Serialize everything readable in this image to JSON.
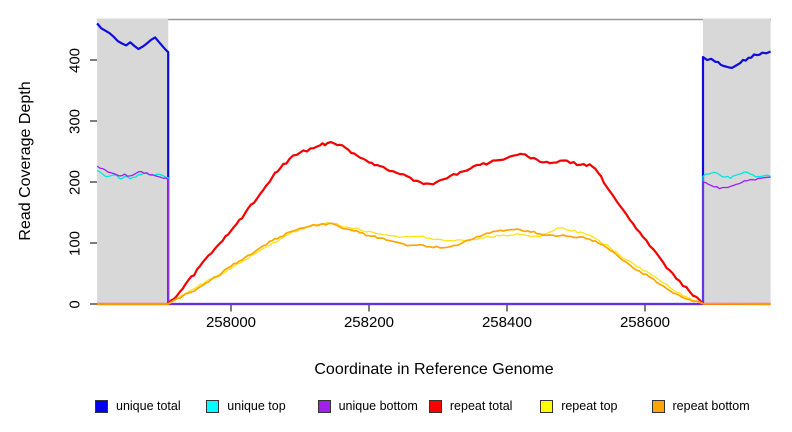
{
  "figure": {
    "background": "#ffffff",
    "masked_region_color": "#d8d8d8",
    "top_border_color": "#999999",
    "tick_color": "#444444",
    "text_color": "#000000"
  },
  "chart_data": {
    "type": "line",
    "title": "",
    "xlabel": "Coordinate in Reference Genome",
    "ylabel": "Read Coverage Depth",
    "xlim": [
      257806,
      258782
    ],
    "ylim": [
      0,
      467
    ],
    "x_ticks": [
      258000,
      258200,
      258400,
      258600
    ],
    "y_ticks": [
      0,
      100,
      200,
      300,
      400
    ],
    "grid": false,
    "legend_position": "bottom",
    "masked_regions": [
      [
        257806,
        257909
      ],
      [
        258684,
        258782
      ]
    ],
    "series": [
      {
        "name": "unique total",
        "color": "#0d0ddb",
        "width": 2.2,
        "jitter": 2.0,
        "points": [
          [
            257806,
            460
          ],
          [
            257812,
            452
          ],
          [
            257818,
            448
          ],
          [
            257824,
            444
          ],
          [
            257830,
            438
          ],
          [
            257836,
            431
          ],
          [
            257842,
            427
          ],
          [
            257848,
            424
          ],
          [
            257854,
            429
          ],
          [
            257860,
            423
          ],
          [
            257866,
            418
          ],
          [
            257872,
            422
          ],
          [
            257878,
            427
          ],
          [
            257884,
            433
          ],
          [
            257890,
            437
          ],
          [
            257896,
            429
          ],
          [
            257902,
            421
          ],
          [
            257906,
            416
          ],
          [
            257909,
            413
          ],
          [
            257909,
            0
          ],
          [
            258684,
            0
          ],
          [
            258684,
            405
          ],
          [
            258690,
            400
          ],
          [
            258696,
            402
          ],
          [
            258702,
            397
          ],
          [
            258710,
            392
          ],
          [
            258718,
            389
          ],
          [
            258726,
            387
          ],
          [
            258732,
            391
          ],
          [
            258738,
            395
          ],
          [
            258746,
            399
          ],
          [
            258754,
            404
          ],
          [
            258762,
            408
          ],
          [
            258770,
            412
          ],
          [
            258776,
            411
          ],
          [
            258782,
            414
          ]
        ]
      },
      {
        "name": "unique top",
        "color": "#00e6e6",
        "width": 1.3,
        "jitter": 1.4,
        "points": [
          [
            257806,
            219
          ],
          [
            257814,
            213
          ],
          [
            257822,
            209
          ],
          [
            257830,
            212
          ],
          [
            257838,
            206
          ],
          [
            257846,
            209
          ],
          [
            257854,
            205
          ],
          [
            257862,
            208
          ],
          [
            257870,
            212
          ],
          [
            257878,
            214
          ],
          [
            257886,
            211
          ],
          [
            257894,
            213
          ],
          [
            257902,
            210
          ],
          [
            257909,
            207
          ],
          [
            257909,
            0
          ],
          [
            258684,
            0
          ],
          [
            258684,
            209
          ],
          [
            258692,
            213
          ],
          [
            258700,
            216
          ],
          [
            258708,
            212
          ],
          [
            258716,
            208
          ],
          [
            258724,
            206
          ],
          [
            258732,
            211
          ],
          [
            258740,
            214
          ],
          [
            258748,
            216
          ],
          [
            258756,
            212
          ],
          [
            258764,
            209
          ],
          [
            258772,
            210
          ],
          [
            258782,
            209
          ]
        ]
      },
      {
        "name": "unique bottom",
        "color": "#a020f0",
        "width": 1.3,
        "jitter": 1.4,
        "points": [
          [
            257806,
            226
          ],
          [
            257814,
            222
          ],
          [
            257822,
            216
          ],
          [
            257830,
            214
          ],
          [
            257838,
            210
          ],
          [
            257846,
            213
          ],
          [
            257854,
            210
          ],
          [
            257862,
            214
          ],
          [
            257870,
            217
          ],
          [
            257878,
            215
          ],
          [
            257886,
            212
          ],
          [
            257894,
            209
          ],
          [
            257902,
            206
          ],
          [
            257909,
            204
          ],
          [
            257909,
            0
          ],
          [
            258684,
            0
          ],
          [
            258684,
            200
          ],
          [
            258692,
            196
          ],
          [
            258700,
            192
          ],
          [
            258708,
            189
          ],
          [
            258716,
            191
          ],
          [
            258724,
            193
          ],
          [
            258732,
            196
          ],
          [
            258740,
            199
          ],
          [
            258748,
            202
          ],
          [
            258756,
            204
          ],
          [
            258764,
            206
          ],
          [
            258772,
            207
          ],
          [
            258782,
            208
          ]
        ]
      },
      {
        "name": "repeat total",
        "color": "#f50000",
        "width": 2.2,
        "jitter": 1.7,
        "points": [
          [
            257806,
            0
          ],
          [
            257909,
            0
          ],
          [
            257930,
            25
          ],
          [
            257955,
            62
          ],
          [
            257980,
            95
          ],
          [
            258000,
            120
          ],
          [
            258020,
            148
          ],
          [
            258042,
            180
          ],
          [
            258060,
            208
          ],
          [
            258071,
            222
          ],
          [
            258085,
            238
          ],
          [
            258100,
            248
          ],
          [
            258115,
            255
          ],
          [
            258129,
            260
          ],
          [
            258140,
            264
          ],
          [
            258150,
            263
          ],
          [
            258158,
            261
          ],
          [
            258170,
            253
          ],
          [
            258187,
            240
          ],
          [
            258200,
            232
          ],
          [
            258216,
            226
          ],
          [
            258230,
            218
          ],
          [
            258245,
            213
          ],
          [
            258260,
            207
          ],
          [
            258274,
            200
          ],
          [
            258288,
            197
          ],
          [
            258303,
            203
          ],
          [
            258318,
            210
          ],
          [
            258332,
            216
          ],
          [
            258347,
            222
          ],
          [
            258361,
            228
          ],
          [
            258375,
            232
          ],
          [
            258390,
            236
          ],
          [
            258405,
            242
          ],
          [
            258419,
            246
          ],
          [
            258430,
            242
          ],
          [
            258448,
            233
          ],
          [
            258462,
            231
          ],
          [
            258477,
            235
          ],
          [
            258492,
            231
          ],
          [
            258506,
            228
          ],
          [
            258520,
            229
          ],
          [
            258532,
            215
          ],
          [
            258549,
            185
          ],
          [
            258563,
            162
          ],
          [
            258578,
            138
          ],
          [
            258592,
            118
          ],
          [
            258607,
            95
          ],
          [
            258622,
            75
          ],
          [
            258636,
            55
          ],
          [
            258650,
            38
          ],
          [
            258665,
            20
          ],
          [
            258684,
            0
          ],
          [
            258782,
            0
          ]
        ]
      },
      {
        "name": "repeat top",
        "color": "#ffe416",
        "width": 1.3,
        "jitter": 1.1,
        "points": [
          [
            257806,
            0
          ],
          [
            257909,
            0
          ],
          [
            257930,
            15
          ],
          [
            257955,
            32
          ],
          [
            257980,
            46
          ],
          [
            258000,
            58
          ],
          [
            258020,
            72
          ],
          [
            258042,
            88
          ],
          [
            258060,
            100
          ],
          [
            258071,
            106
          ],
          [
            258085,
            115
          ],
          [
            258100,
            122
          ],
          [
            258115,
            127
          ],
          [
            258129,
            131
          ],
          [
            258140,
            134
          ],
          [
            258150,
            132
          ],
          [
            258158,
            128
          ],
          [
            258172,
            125
          ],
          [
            258187,
            122
          ],
          [
            258200,
            119
          ],
          [
            258216,
            115
          ],
          [
            258230,
            112
          ],
          [
            258245,
            109
          ],
          [
            258260,
            110
          ],
          [
            258274,
            111
          ],
          [
            258288,
            108
          ],
          [
            258303,
            106
          ],
          [
            258318,
            104
          ],
          [
            258332,
            105
          ],
          [
            258347,
            106
          ],
          [
            258361,
            108
          ],
          [
            258375,
            110
          ],
          [
            258390,
            112
          ],
          [
            258405,
            113
          ],
          [
            258419,
            114
          ],
          [
            258430,
            112
          ],
          [
            258448,
            110
          ],
          [
            258462,
            118
          ],
          [
            258477,
            125
          ],
          [
            258490,
            121
          ],
          [
            258506,
            118
          ],
          [
            258520,
            113
          ],
          [
            258532,
            105
          ],
          [
            258549,
            93
          ],
          [
            258563,
            80
          ],
          [
            258578,
            70
          ],
          [
            258592,
            60
          ],
          [
            258607,
            50
          ],
          [
            258622,
            38
          ],
          [
            258636,
            27
          ],
          [
            258650,
            18
          ],
          [
            258665,
            9
          ],
          [
            258684,
            0
          ],
          [
            258782,
            0
          ]
        ]
      },
      {
        "name": "repeat bottom",
        "color": "#ffa500",
        "width": 1.7,
        "jitter": 1.1,
        "points": [
          [
            257806,
            0
          ],
          [
            257909,
            0
          ],
          [
            257930,
            13
          ],
          [
            257955,
            28
          ],
          [
            257980,
            45
          ],
          [
            258000,
            62
          ],
          [
            258020,
            76
          ],
          [
            258042,
            92
          ],
          [
            258060,
            104
          ],
          [
            258071,
            110
          ],
          [
            258085,
            118
          ],
          [
            258100,
            124
          ],
          [
            258115,
            128
          ],
          [
            258129,
            130
          ],
          [
            258142,
            132
          ],
          [
            258158,
            126
          ],
          [
            258172,
            122
          ],
          [
            258187,
            117
          ],
          [
            258200,
            112
          ],
          [
            258216,
            108
          ],
          [
            258230,
            104
          ],
          [
            258245,
            100
          ],
          [
            258260,
            96
          ],
          [
            258274,
            97
          ],
          [
            258288,
            94
          ],
          [
            258303,
            92
          ],
          [
            258318,
            94
          ],
          [
            258332,
            98
          ],
          [
            258347,
            105
          ],
          [
            258361,
            111
          ],
          [
            258375,
            116
          ],
          [
            258390,
            121
          ],
          [
            258405,
            122
          ],
          [
            258419,
            122
          ],
          [
            258430,
            120
          ],
          [
            258448,
            115
          ],
          [
            258462,
            113
          ],
          [
            258477,
            112
          ],
          [
            258492,
            111
          ],
          [
            258506,
            110
          ],
          [
            258520,
            106
          ],
          [
            258532,
            100
          ],
          [
            258549,
            88
          ],
          [
            258563,
            76
          ],
          [
            258578,
            64
          ],
          [
            258592,
            54
          ],
          [
            258607,
            44
          ],
          [
            258622,
            32
          ],
          [
            258636,
            22
          ],
          [
            258650,
            14
          ],
          [
            258665,
            7
          ],
          [
            258684,
            0
          ],
          [
            258782,
            0
          ]
        ]
      }
    ]
  },
  "legend": {
    "items": [
      {
        "label": "unique total",
        "color": "#0000f0"
      },
      {
        "label": "unique top",
        "color": "#00ffff"
      },
      {
        "label": "unique bottom",
        "color": "#a020f0"
      },
      {
        "label": "repeat total",
        "color": "#ff0000"
      },
      {
        "label": "repeat top",
        "color": "#ffff00"
      },
      {
        "label": "repeat bottom",
        "color": "#ffa500"
      }
    ]
  }
}
